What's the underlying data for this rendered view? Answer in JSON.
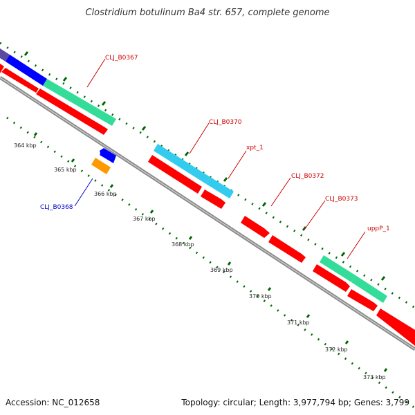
{
  "title": "Clostridium botulinum Ba4 str. 657, complete genome",
  "footer": {
    "accession": "Accession: NC_012658",
    "summary": "Topology: circular; Length: 3,977,794 bp; Genes: 3,799"
  },
  "scale_labels": [
    "364 kbp",
    "365 kbp",
    "366 kbp",
    "367 kbp",
    "368 kbp",
    "369 kbp",
    "370 kbp",
    "371 kbp",
    "372 kbp",
    "373 kbp"
  ],
  "gene_labels": [
    {
      "name": "CLJ_B0367",
      "color": "#cc0000"
    },
    {
      "name": "CLJ_B0370",
      "color": "#cc0000"
    },
    {
      "name": "xpt_1",
      "color": "#cc0000"
    },
    {
      "name": "CLJ_B0372",
      "color": "#cc0000"
    },
    {
      "name": "CLJ_B0373",
      "color": "#cc0000"
    },
    {
      "name": "uppP_1",
      "color": "#cc0000"
    },
    {
      "name": "CLJ_B0368",
      "color": "#0000cc"
    }
  ],
  "colors": {
    "cds": "#ff0000",
    "gene": "#33cc99",
    "gene_alt": "#33ccee",
    "rna": "#0000ff",
    "other": "#ff9900",
    "backbone": "#8c8c8c",
    "ticks": "#006600"
  }
}
